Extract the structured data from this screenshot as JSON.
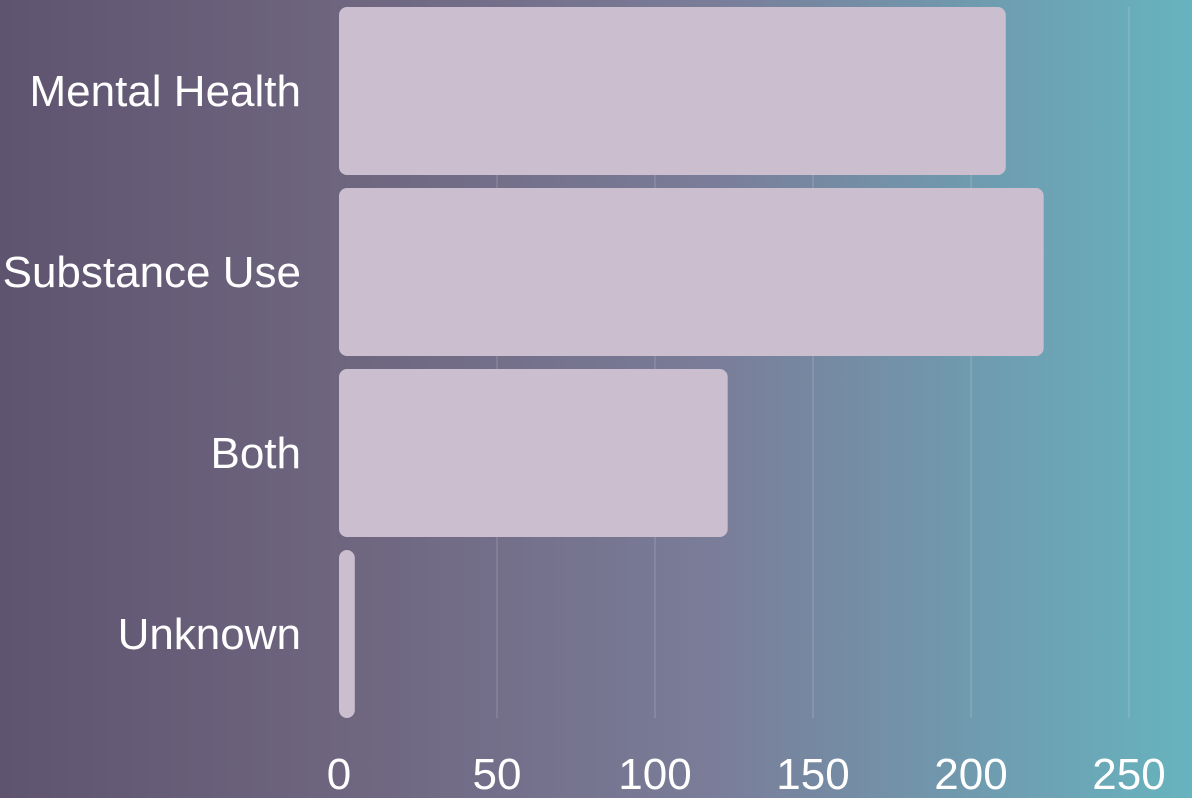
{
  "chart_data": {
    "type": "bar",
    "orientation": "horizontal",
    "categories": [
      "Mental Health",
      "Substance Use",
      "Both",
      "Unknown"
    ],
    "values": [
      211,
      223,
      123,
      5
    ],
    "title": "",
    "xlabel": "",
    "ylabel": "",
    "xlim": [
      0,
      250
    ],
    "x_ticks": [
      "0",
      "50",
      "100",
      "150",
      "200",
      "250"
    ],
    "grid": true,
    "legend": "none",
    "colors": {
      "bar": "#cbbfcf",
      "background_start": "#5e5470",
      "background_end": "#67b3be",
      "text": "#ffffff"
    }
  }
}
